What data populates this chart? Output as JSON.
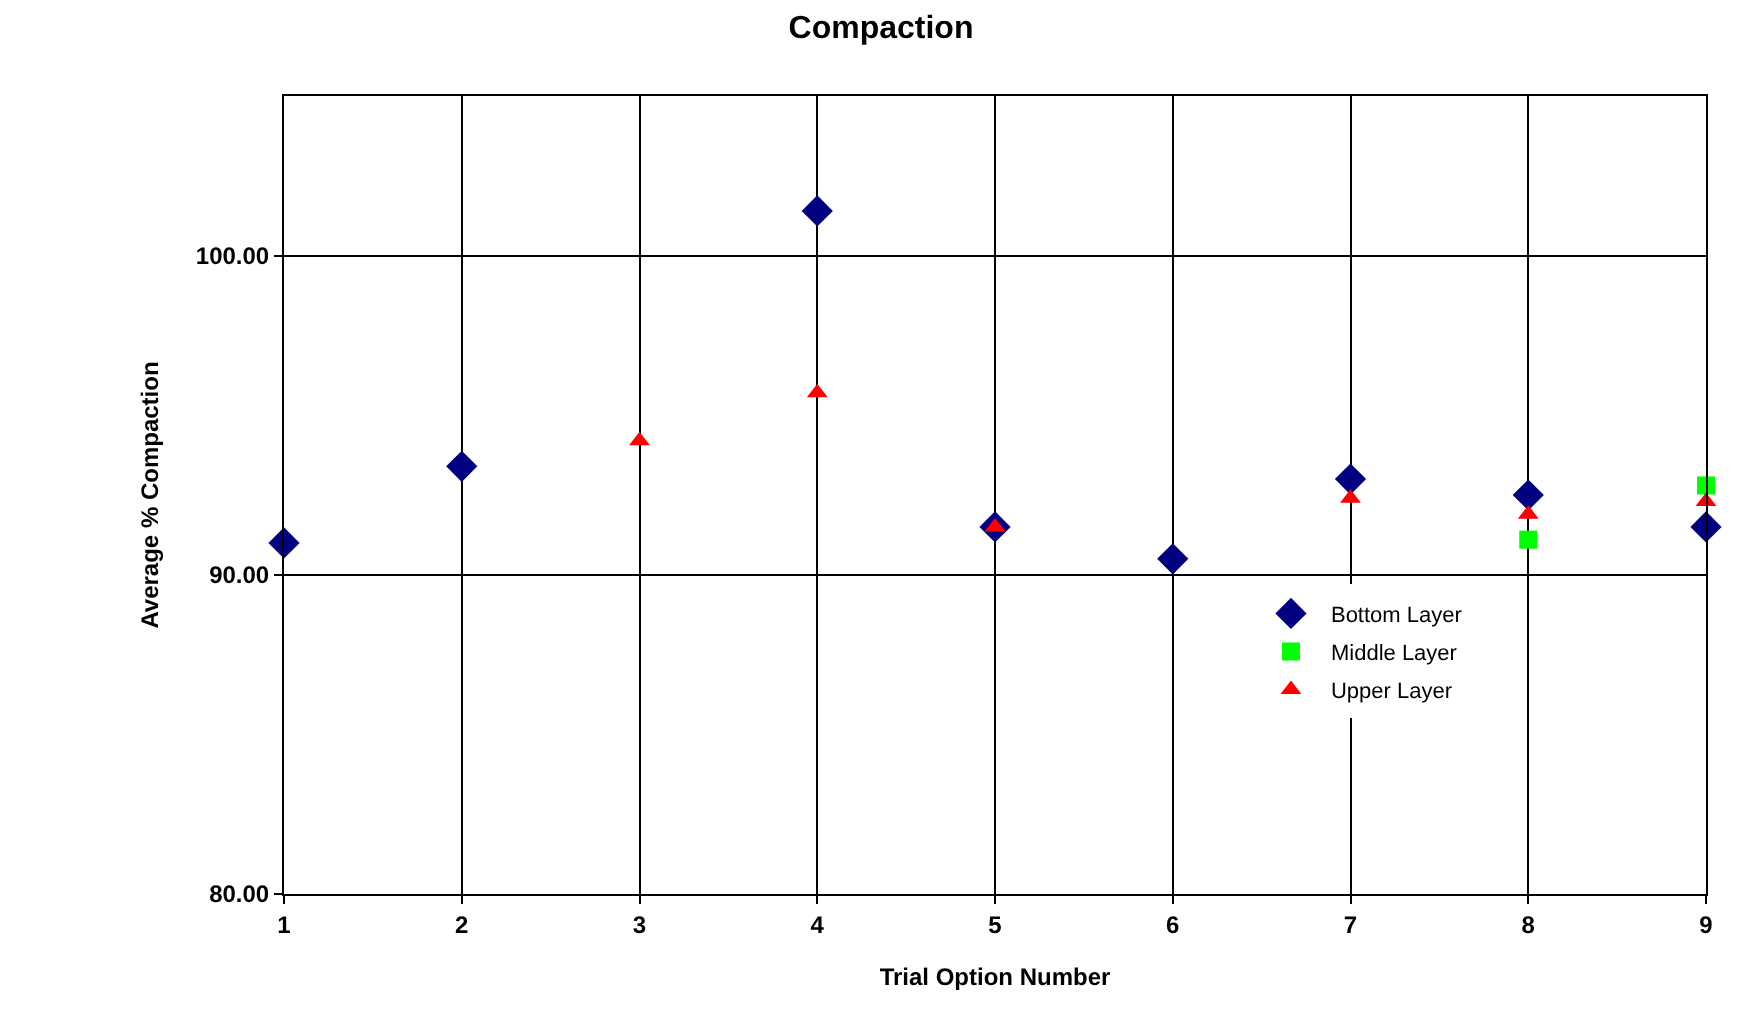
{
  "chart_data": {
    "type": "scatter",
    "title": "Compaction",
    "xlabel": "Trial Option Number",
    "ylabel": "Average % Compaction",
    "x": [
      1,
      2,
      3,
      4,
      5,
      6,
      7,
      8,
      9
    ],
    "series": [
      {
        "name": "Middle Layer",
        "color": "#00ff00",
        "marker": "square",
        "values": [
          null,
          null,
          null,
          null,
          null,
          null,
          null,
          91.1,
          92.8
        ]
      },
      {
        "name": "Bottom Layer",
        "color": "#000080",
        "marker": "diamond",
        "values": [
          91.0,
          93.4,
          null,
          101.4,
          91.5,
          90.5,
          93.0,
          92.5,
          91.5
        ]
      },
      {
        "name": "Upper Layer",
        "color": "#ff0000",
        "marker": "triangle",
        "values": [
          null,
          null,
          94.2,
          95.7,
          91.5,
          null,
          92.4,
          91.9,
          92.3
        ]
      }
    ],
    "xlim": [
      1,
      9
    ],
    "xticks": [
      1,
      2,
      3,
      4,
      5,
      6,
      7,
      8,
      9
    ],
    "ylim": [
      80,
      105
    ],
    "yticks": [
      {
        "value": 80,
        "label": "80.00"
      },
      {
        "value": 90,
        "label": "90.00"
      },
      {
        "value": 100,
        "label": "100.00"
      }
    ],
    "grid": true,
    "legend": "bottom right"
  }
}
